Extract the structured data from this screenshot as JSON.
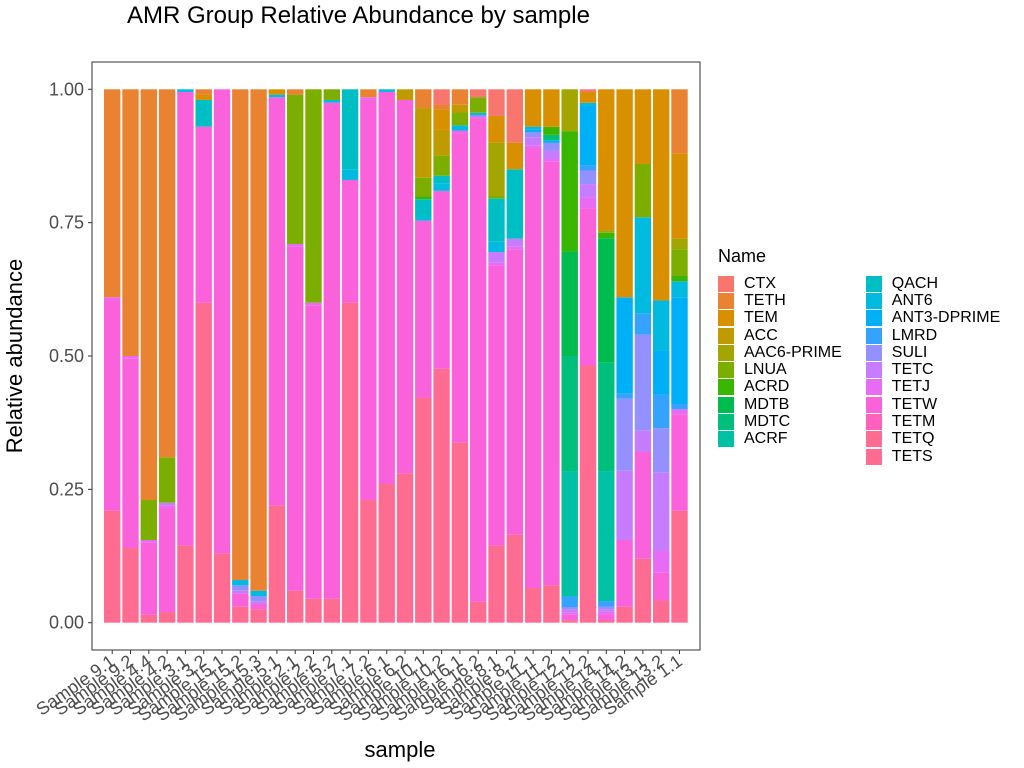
{
  "chart_data": {
    "type": "bar",
    "stacked": true,
    "title": "AMR Group Relative Abundance by sample",
    "xlabel": "sample",
    "ylabel": "Relative abundance",
    "ylim": [
      0,
      1
    ],
    "yticks": [
      "0.00",
      "0.25",
      "0.50",
      "0.75",
      "1.00"
    ],
    "ytick_values": [
      0,
      0.25,
      0.5,
      0.75,
      1.0
    ],
    "legend_title": "Name",
    "legend_position": "right",
    "grid": false,
    "categories": [
      "Sample 9.1",
      "Sample 9.2",
      "Sample 4.4",
      "Sample 4.2",
      "Sample 3.1",
      "Sample 3.2",
      "Sample 15.1",
      "Sample 15.2",
      "Sample 15.3",
      "Sample 5.1",
      "Sample 2.1",
      "Sample 2.2",
      "Sample 5.2",
      "Sample 7.1",
      "Sample 7.2",
      "Sample 6.1",
      "Sample 6.2",
      "Sample 10.1",
      "Sample 10.2",
      "Sample 16.1",
      "Sample 16.2",
      "Sample 8.1",
      "Sample 8.2",
      "Sample 11.1",
      "Sample 11.2",
      "Sample 12.1",
      "Sample 12.2",
      "Sample 14.1",
      "Sample 14.2",
      "Sample 13.1",
      "Sample 13.2",
      "Sample 1.1"
    ],
    "series": [
      {
        "name": "CTX",
        "color": "#F8766D",
        "values": [
          0,
          0,
          0,
          0,
          0,
          0,
          0,
          0,
          0,
          0,
          0,
          0,
          0,
          0,
          0,
          0,
          0,
          0,
          0.03,
          0,
          0.015,
          0.05,
          0.1,
          0,
          0,
          0,
          0.005,
          0,
          0,
          0,
          0,
          0
        ]
      },
      {
        "name": "TETH",
        "color": "#EA8331",
        "values": [
          0.39,
          0.5,
          0.77,
          0.69,
          0,
          0.01,
          0,
          0.92,
          0.94,
          0,
          0.01,
          0,
          0,
          0,
          0.015,
          0,
          0,
          0.035,
          0.01,
          0.03,
          0,
          0,
          0,
          0,
          0,
          0,
          0,
          0,
          0,
          0,
          0,
          0.12
        ]
      },
      {
        "name": "TEM",
        "color": "#D89000",
        "values": [
          0,
          0,
          0,
          0,
          0,
          0.01,
          0,
          0,
          0,
          0.01,
          0,
          0,
          0,
          0,
          0,
          0,
          0,
          0,
          0.04,
          0,
          0,
          0.05,
          0.05,
          0.07,
          0.07,
          0,
          0.02,
          0.26,
          0.39,
          0.14,
          0.38,
          0.16
        ]
      },
      {
        "name": "ACC",
        "color": "#C09B00",
        "values": [
          0,
          0,
          0,
          0,
          0,
          0,
          0,
          0,
          0,
          0,
          0,
          0,
          0,
          0,
          0,
          0,
          0.02,
          0.13,
          0.05,
          0.015,
          0,
          0,
          0,
          0,
          0,
          0,
          0,
          0,
          0,
          0,
          0,
          0
        ]
      },
      {
        "name": "AAC6-PRIME",
        "color": "#A3A500",
        "values": [
          0,
          0,
          0,
          0,
          0,
          0,
          0,
          0,
          0,
          0,
          0,
          0,
          0,
          0,
          0,
          0,
          0,
          0,
          0,
          0,
          0,
          0.1,
          0,
          0,
          0,
          0.08,
          0,
          0.005,
          0,
          0,
          0,
          0.02
        ]
      },
      {
        "name": "LNUA",
        "color": "#7CAE00",
        "values": [
          0,
          0,
          0.075,
          0.085,
          0,
          0,
          0,
          0,
          0,
          0,
          0.28,
          0.4,
          0.02,
          0,
          0,
          0,
          0,
          0.035,
          0.04,
          0.025,
          0.03,
          0.005,
          0,
          0,
          0,
          0,
          0,
          0,
          0,
          0.1,
          0,
          0.05
        ]
      },
      {
        "name": "ACRD",
        "color": "#39B600",
        "values": [
          0,
          0,
          0,
          0,
          0,
          0,
          0,
          0,
          0,
          0,
          0,
          0,
          0,
          0,
          0,
          0,
          0,
          0.005,
          0,
          0,
          0,
          0,
          0,
          0,
          0.015,
          0.23,
          0,
          0.01,
          0,
          0,
          0,
          0.01
        ]
      },
      {
        "name": "MDTB",
        "color": "#00BB4E",
        "values": [
          0,
          0,
          0,
          0,
          0,
          0,
          0,
          0,
          0,
          0,
          0,
          0,
          0,
          0,
          0,
          0,
          0,
          0,
          0,
          0,
          0,
          0,
          0,
          0,
          0,
          0.2,
          0,
          0.23,
          0,
          0,
          0,
          0
        ]
      },
      {
        "name": "MDTC",
        "color": "#00BF7D",
        "values": [
          0,
          0,
          0,
          0,
          0,
          0,
          0,
          0,
          0,
          0,
          0,
          0,
          0,
          0,
          0,
          0,
          0,
          0,
          0,
          0,
          0,
          0,
          0,
          0,
          0.01,
          0.22,
          0,
          0.2,
          0,
          0,
          0,
          0
        ]
      },
      {
        "name": "ACRF",
        "color": "#00C1A3",
        "values": [
          0,
          0,
          0,
          0,
          0,
          0,
          0,
          0,
          0,
          0,
          0,
          0,
          0,
          0,
          0,
          0,
          0,
          0,
          0,
          0,
          0,
          0,
          0,
          0,
          0,
          0.24,
          0,
          0.24,
          0,
          0,
          0,
          0
        ]
      },
      {
        "name": "QACH",
        "color": "#00BFC4",
        "values": [
          0,
          0,
          0,
          0,
          0,
          0.05,
          0,
          0,
          0,
          0,
          0,
          0,
          0,
          0.15,
          0,
          0,
          0,
          0.035,
          0.015,
          0,
          0,
          0.08,
          0.13,
          0,
          0,
          0,
          0,
          0,
          0,
          0,
          0,
          0
        ]
      },
      {
        "name": "ANT6",
        "color": "#00BAE0",
        "values": [
          0,
          0,
          0,
          0,
          0.005,
          0,
          0,
          0.01,
          0.01,
          0.005,
          0,
          0,
          0.005,
          0.02,
          0,
          0.005,
          0,
          0.005,
          0.015,
          0.01,
          0.005,
          0.02,
          0,
          0.005,
          0,
          0,
          0.005,
          0,
          0,
          0.18,
          0.09,
          0.03
        ]
      },
      {
        "name": "ANT3-DPRIME",
        "color": "#00B0F6",
        "values": [
          0,
          0,
          0,
          0,
          0,
          0,
          0,
          0,
          0,
          0,
          0,
          0,
          0,
          0,
          0,
          0,
          0,
          0,
          0,
          0,
          0,
          0,
          0,
          0.005,
          0.005,
          0,
          0.11,
          0,
          0.18,
          0,
          0.08,
          0.2
        ]
      },
      {
        "name": "LMRD",
        "color": "#35A2FF",
        "values": [
          0,
          0,
          0,
          0,
          0,
          0,
          0,
          0,
          0,
          0,
          0,
          0,
          0,
          0,
          0,
          0,
          0,
          0,
          0,
          0,
          0,
          0,
          0,
          0,
          0,
          0.02,
          0.01,
          0.01,
          0.01,
          0.04,
          0.06,
          0.01
        ]
      },
      {
        "name": "SULI",
        "color": "#9590FF",
        "values": [
          0,
          0,
          0,
          0,
          0,
          0,
          0,
          0.01,
          0.01,
          0,
          0,
          0,
          0,
          0,
          0,
          0,
          0,
          0,
          0,
          0,
          0,
          0,
          0,
          0.01,
          0.015,
          0.005,
          0.025,
          0.005,
          0.135,
          0.18,
          0.08,
          0
        ]
      },
      {
        "name": "TETC",
        "color": "#C77CFF",
        "values": [
          0,
          0,
          0,
          0.005,
          0,
          0,
          0,
          0.005,
          0.005,
          0,
          0,
          0,
          0,
          0,
          0,
          0,
          0,
          0,
          0,
          0,
          0.005,
          0.02,
          0.015,
          0.015,
          0.015,
          0.005,
          0.025,
          0.005,
          0.13,
          0.04,
          0.14,
          0
        ]
      },
      {
        "name": "TETJ",
        "color": "#E76BF3",
        "values": [
          0.005,
          0.005,
          0.005,
          0.005,
          0,
          0,
          0,
          0,
          0,
          0,
          0.005,
          0.005,
          0,
          0,
          0.005,
          0,
          0,
          0,
          0,
          0.005,
          0,
          0.005,
          0.005,
          0.005,
          0.005,
          0.005,
          0.02,
          0.005,
          0,
          0,
          0.04,
          0.01
        ]
      },
      {
        "name": "TETW",
        "color": "#FA62DB",
        "values": [
          0.395,
          0.355,
          0.135,
          0.195,
          0.85,
          0.33,
          0.87,
          0.025,
          0.01,
          0.765,
          0.645,
          0.55,
          0.93,
          0.23,
          0.75,
          0.735,
          0.7,
          0.33,
          0.35,
          0.6,
          0.925,
          0.525,
          0.535,
          0.825,
          0.79,
          0.01,
          0.29,
          0.01,
          0.125,
          0.2,
          0.05,
          0.18
        ]
      },
      {
        "name": "TETM",
        "color": "#FF62BC",
        "values": [
          0,
          0,
          0,
          0,
          0,
          0,
          0,
          0,
          0,
          0,
          0,
          0,
          0,
          0,
          0,
          0,
          0,
          0,
          0,
          0,
          0,
          0,
          0,
          0,
          0,
          0,
          0,
          0,
          0,
          0,
          0,
          0
        ]
      },
      {
        "name": "TETQ",
        "color": "#FF6C91",
        "values": [
          0,
          0,
          0,
          0,
          0,
          0,
          0,
          0,
          0,
          0,
          0,
          0,
          0,
          0,
          0,
          0,
          0,
          0,
          0,
          0,
          0,
          0,
          0,
          0,
          0,
          0,
          0,
          0,
          0,
          0,
          0,
          0
        ]
      },
      {
        "name": "TETS",
        "color": "#FF6C91",
        "values": [
          0.21,
          0.14,
          0.015,
          0.02,
          0.145,
          0.6,
          0.13,
          0.03,
          0.025,
          0.22,
          0.06,
          0.045,
          0.045,
          0.6,
          0.23,
          0.26,
          0.28,
          0.42,
          0.5,
          0.35,
          0.04,
          0.145,
          0.165,
          0.065,
          0.07,
          0.005,
          0.475,
          0.005,
          0.03,
          0.12,
          0.04,
          0.21
        ]
      }
    ]
  }
}
